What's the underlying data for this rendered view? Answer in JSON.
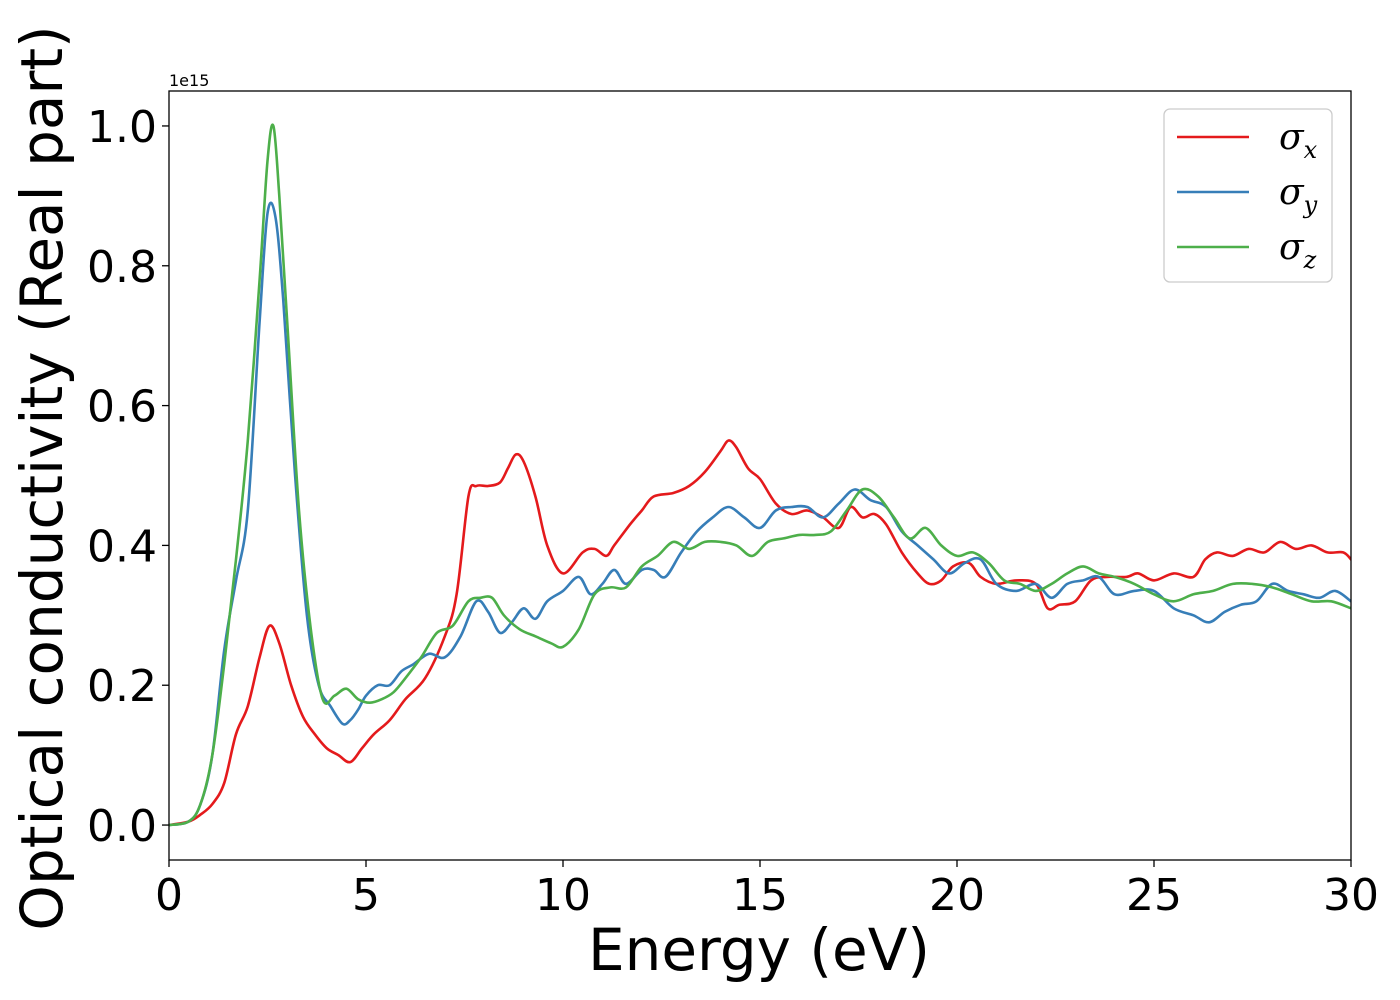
{
  "chart_data": {
    "type": "line",
    "title": "",
    "xlabel": "Energy (eV)",
    "ylabel": "Optical conductivity (Real part)",
    "y_offset_label": "1e15",
    "y_multiplier": 1000000000000000.0,
    "xlim": [
      0,
      30
    ],
    "ylim": [
      -0.05,
      1.05
    ],
    "xticks": [
      0,
      5,
      10,
      15,
      20,
      25,
      30
    ],
    "xtick_labels": [
      "0",
      "5",
      "10",
      "15",
      "20",
      "25",
      "30"
    ],
    "yticks": [
      0.0,
      0.2,
      0.4,
      0.6,
      0.8,
      1.0
    ],
    "ytick_labels": [
      "0.0",
      "0.2",
      "0.4",
      "0.6",
      "0.8",
      "1.0"
    ],
    "grid": false,
    "legend_position": "top-right",
    "series": [
      {
        "name": "σx",
        "symbol": "σ",
        "subscript": "x",
        "color": "#e41a1c",
        "x": [
          0,
          0.5,
          0.8,
          1.1,
          1.4,
          1.7,
          2.0,
          2.3,
          2.55,
          2.8,
          3.1,
          3.4,
          3.7,
          4.0,
          4.3,
          4.6,
          4.9,
          5.2,
          5.6,
          6.0,
          6.5,
          7.0,
          7.3,
          7.6,
          7.8,
          8.1,
          8.4,
          8.6,
          8.8,
          9.0,
          9.3,
          9.6,
          10.0,
          10.5,
          10.8,
          11.1,
          11.3,
          11.7,
          12.0,
          12.3,
          12.8,
          13.2,
          13.6,
          14.0,
          14.2,
          14.4,
          14.7,
          15.0,
          15.4,
          15.8,
          16.2,
          16.6,
          17.0,
          17.3,
          17.6,
          17.9,
          18.2,
          18.6,
          19.0,
          19.3,
          19.6,
          19.9,
          20.3,
          20.6,
          21.0,
          21.5,
          22.0,
          22.3,
          22.6,
          23.0,
          23.4,
          23.8,
          24.3,
          24.6,
          25.0,
          25.5,
          26.0,
          26.3,
          26.6,
          27.0,
          27.4,
          27.8,
          28.2,
          28.6,
          29.0,
          29.4,
          29.8,
          30.0
        ],
        "y": [
          0.0,
          0.005,
          0.015,
          0.03,
          0.06,
          0.13,
          0.17,
          0.24,
          0.285,
          0.26,
          0.2,
          0.155,
          0.13,
          0.11,
          0.1,
          0.09,
          0.11,
          0.13,
          0.15,
          0.18,
          0.21,
          0.27,
          0.33,
          0.47,
          0.485,
          0.485,
          0.49,
          0.51,
          0.53,
          0.52,
          0.47,
          0.4,
          0.36,
          0.39,
          0.395,
          0.385,
          0.4,
          0.43,
          0.45,
          0.47,
          0.475,
          0.485,
          0.505,
          0.535,
          0.55,
          0.54,
          0.51,
          0.495,
          0.46,
          0.445,
          0.45,
          0.44,
          0.425,
          0.455,
          0.44,
          0.445,
          0.43,
          0.39,
          0.36,
          0.345,
          0.35,
          0.37,
          0.375,
          0.355,
          0.345,
          0.35,
          0.345,
          0.31,
          0.315,
          0.32,
          0.35,
          0.355,
          0.355,
          0.36,
          0.35,
          0.36,
          0.355,
          0.38,
          0.39,
          0.385,
          0.395,
          0.39,
          0.405,
          0.395,
          0.4,
          0.39,
          0.39,
          0.38
        ]
      },
      {
        "name": "σy",
        "symbol": "σ",
        "subscript": "y",
        "color": "#377eb8",
        "x": [
          0,
          0.5,
          0.8,
          1.1,
          1.4,
          1.7,
          2.0,
          2.3,
          2.5,
          2.7,
          2.9,
          3.2,
          3.5,
          3.8,
          4.1,
          4.4,
          4.6,
          4.8,
          5.0,
          5.3,
          5.6,
          5.9,
          6.2,
          6.6,
          7.0,
          7.4,
          7.8,
          8.1,
          8.4,
          8.7,
          9.0,
          9.3,
          9.6,
          10.0,
          10.4,
          10.7,
          11.0,
          11.3,
          11.6,
          12.0,
          12.3,
          12.6,
          13.0,
          13.4,
          13.8,
          14.2,
          14.6,
          15.0,
          15.4,
          15.8,
          16.2,
          16.6,
          17.0,
          17.4,
          17.8,
          18.2,
          18.6,
          19.0,
          19.4,
          19.8,
          20.2,
          20.6,
          21.0,
          21.5,
          22.0,
          22.4,
          22.8,
          23.2,
          23.6,
          24.0,
          24.5,
          25.0,
          25.5,
          26.0,
          26.4,
          26.8,
          27.2,
          27.6,
          28.0,
          28.4,
          28.8,
          29.2,
          29.6,
          30.0
        ],
        "y": [
          0.0,
          0.005,
          0.03,
          0.1,
          0.25,
          0.35,
          0.45,
          0.72,
          0.875,
          0.87,
          0.75,
          0.5,
          0.3,
          0.2,
          0.17,
          0.145,
          0.15,
          0.165,
          0.185,
          0.2,
          0.2,
          0.22,
          0.23,
          0.245,
          0.24,
          0.27,
          0.32,
          0.305,
          0.275,
          0.29,
          0.31,
          0.295,
          0.32,
          0.335,
          0.355,
          0.33,
          0.345,
          0.365,
          0.345,
          0.365,
          0.365,
          0.355,
          0.39,
          0.42,
          0.44,
          0.455,
          0.44,
          0.425,
          0.45,
          0.455,
          0.455,
          0.44,
          0.46,
          0.48,
          0.465,
          0.455,
          0.42,
          0.4,
          0.38,
          0.36,
          0.375,
          0.38,
          0.345,
          0.335,
          0.345,
          0.325,
          0.345,
          0.35,
          0.355,
          0.33,
          0.335,
          0.335,
          0.31,
          0.3,
          0.29,
          0.305,
          0.315,
          0.32,
          0.345,
          0.335,
          0.33,
          0.325,
          0.335,
          0.32
        ]
      },
      {
        "name": "σz",
        "symbol": "σ",
        "subscript": "z",
        "color": "#4daf4a",
        "x": [
          0,
          0.5,
          0.8,
          1.1,
          1.4,
          1.7,
          2.0,
          2.3,
          2.5,
          2.65,
          2.8,
          3.0,
          3.3,
          3.6,
          3.9,
          4.2,
          4.5,
          4.8,
          5.1,
          5.4,
          5.7,
          6.0,
          6.4,
          6.8,
          7.2,
          7.6,
          7.9,
          8.2,
          8.5,
          8.9,
          9.3,
          9.7,
          10.0,
          10.4,
          10.8,
          11.2,
          11.6,
          12.0,
          12.4,
          12.8,
          13.2,
          13.6,
          14.0,
          14.4,
          14.8,
          15.2,
          15.6,
          16.0,
          16.4,
          16.8,
          17.2,
          17.6,
          18.0,
          18.4,
          18.8,
          19.2,
          19.6,
          20.0,
          20.4,
          20.8,
          21.2,
          21.6,
          22.0,
          22.4,
          22.8,
          23.2,
          23.6,
          24.0,
          24.5,
          25.0,
          25.5,
          26.0,
          26.5,
          27.0,
          27.5,
          28.0,
          28.5,
          29.0,
          29.5,
          30.0
        ],
        "y": [
          0.0,
          0.005,
          0.03,
          0.1,
          0.23,
          0.38,
          0.55,
          0.78,
          0.95,
          1.0,
          0.9,
          0.72,
          0.45,
          0.28,
          0.18,
          0.185,
          0.195,
          0.18,
          0.175,
          0.18,
          0.19,
          0.21,
          0.24,
          0.275,
          0.285,
          0.32,
          0.325,
          0.325,
          0.3,
          0.28,
          0.27,
          0.26,
          0.255,
          0.28,
          0.33,
          0.34,
          0.34,
          0.37,
          0.385,
          0.405,
          0.395,
          0.405,
          0.405,
          0.4,
          0.385,
          0.405,
          0.41,
          0.415,
          0.415,
          0.42,
          0.45,
          0.48,
          0.47,
          0.44,
          0.41,
          0.425,
          0.4,
          0.385,
          0.39,
          0.375,
          0.35,
          0.345,
          0.335,
          0.345,
          0.36,
          0.37,
          0.36,
          0.355,
          0.345,
          0.33,
          0.32,
          0.33,
          0.335,
          0.345,
          0.345,
          0.34,
          0.33,
          0.32,
          0.32,
          0.31
        ]
      }
    ]
  }
}
